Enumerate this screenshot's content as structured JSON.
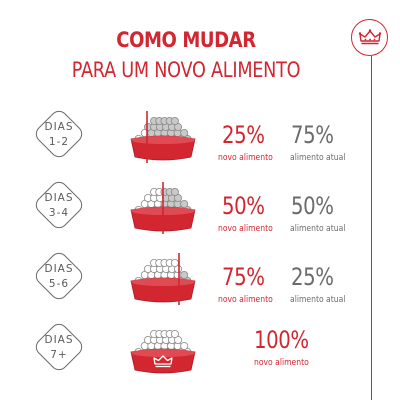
{
  "header": {
    "title_line1": "COMO MUDAR",
    "title_line2": "PARA UM NOVO ALIMENTO"
  },
  "colors": {
    "brand_red": "#d22630",
    "text_gray": "#6b6b6b"
  },
  "icons": {
    "brand": "royal-crown-icon",
    "bowl": "food-bowl-icon"
  },
  "steps": [
    {
      "days_label": "DIAS",
      "days_range": "1-2",
      "new_percent": "25%",
      "new_label": "novo alimento",
      "current_percent": "75%",
      "current_label": "alimento atual",
      "new_fraction": 0.25
    },
    {
      "days_label": "DIAS",
      "days_range": "3-4",
      "new_percent": "50%",
      "new_label": "novo alimento",
      "current_percent": "50%",
      "current_label": "alimento atual",
      "new_fraction": 0.5
    },
    {
      "days_label": "DIAS",
      "days_range": "5-6",
      "new_percent": "75%",
      "new_label": "novo alimento",
      "current_percent": "25%",
      "current_label": "alimento atual",
      "new_fraction": 0.75
    },
    {
      "days_label": "DIAS",
      "days_range": "7+",
      "new_percent": "100%",
      "new_label": "novo alimento",
      "new_fraction": 1.0
    }
  ]
}
